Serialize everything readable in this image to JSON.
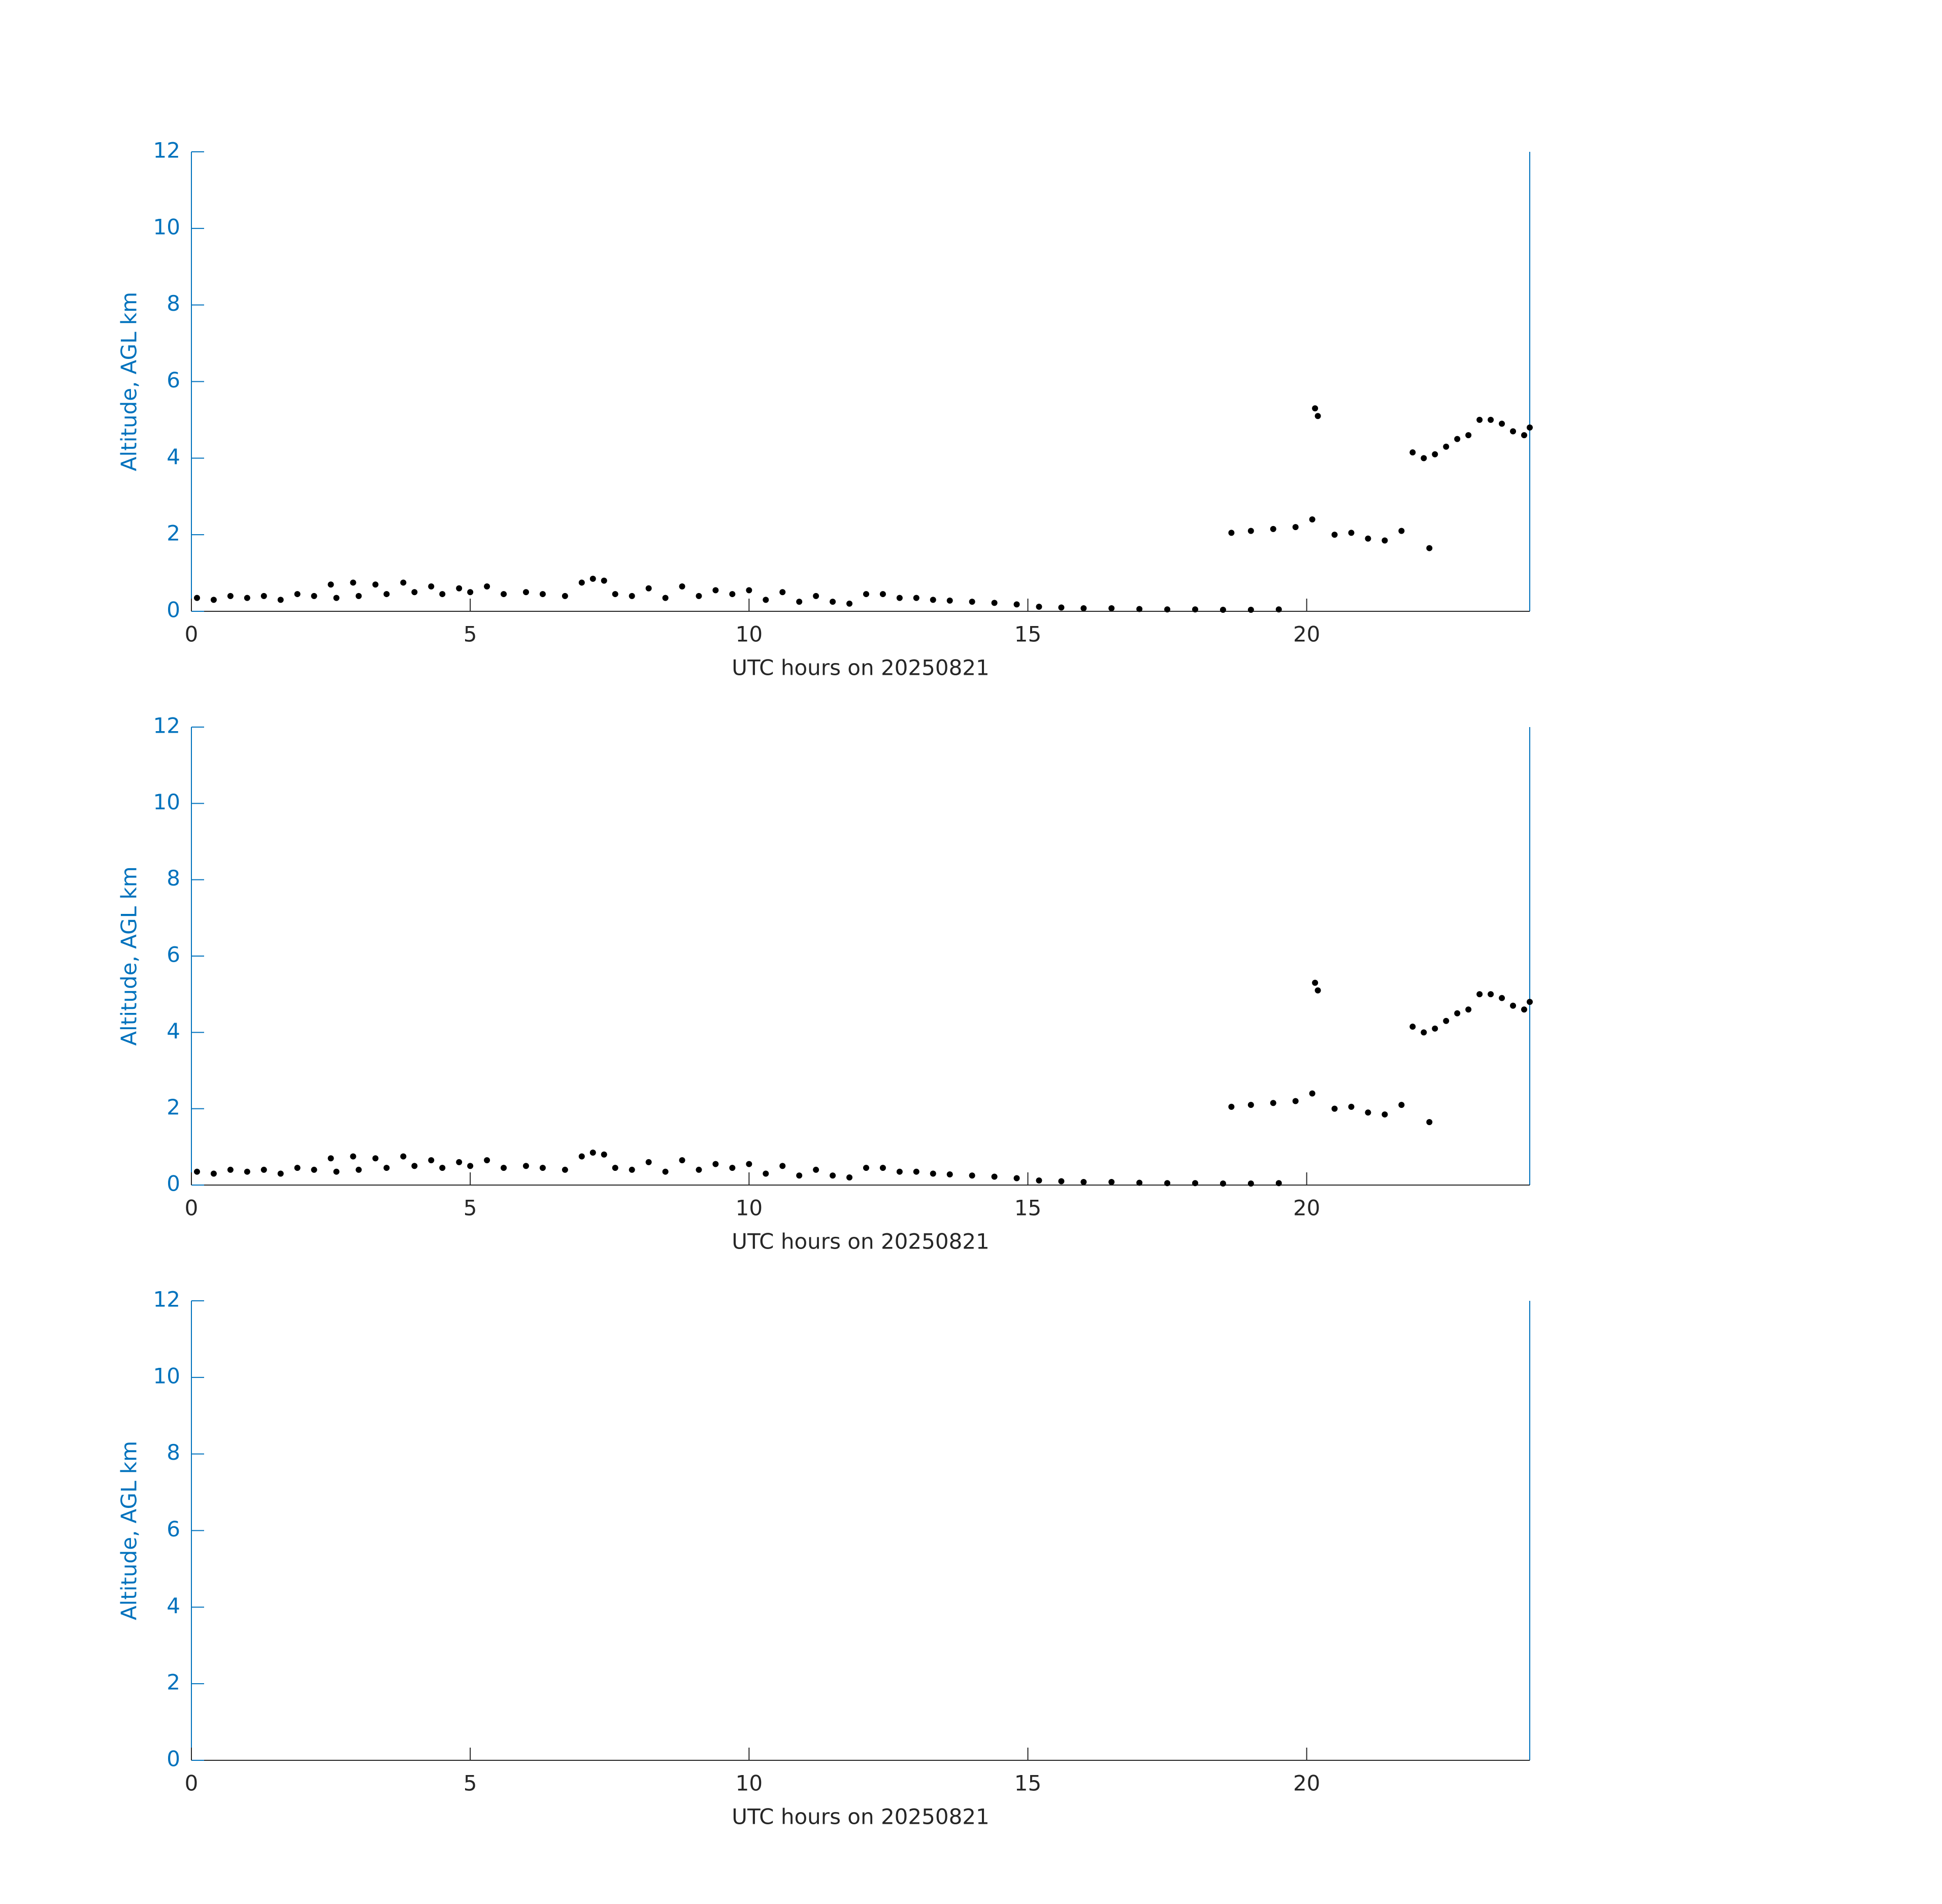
{
  "chart_data": [
    {
      "type": "scatter",
      "xlabel": "UTC hours on 20250821",
      "ylabel": "Altitude, AGL km",
      "xlim": [
        0,
        24
      ],
      "ylim": [
        0,
        12
      ],
      "xticks": [
        0,
        5,
        10,
        15,
        20
      ],
      "yticks": [
        0,
        2,
        4,
        6,
        8,
        10,
        12
      ],
      "y_axis_color": "#0072bd",
      "x_axis_color": "#262626",
      "color": "#000000",
      "x": [
        0.1,
        0.4,
        0.7,
        1.0,
        1.3,
        1.6,
        1.9,
        2.2,
        2.5,
        2.6,
        2.9,
        3.0,
        3.3,
        3.5,
        3.8,
        4.0,
        4.3,
        4.5,
        4.8,
        5.0,
        5.3,
        5.6,
        6.0,
        6.3,
        6.7,
        7.0,
        7.2,
        7.4,
        7.6,
        7.9,
        8.2,
        8.5,
        8.8,
        9.1,
        9.4,
        9.7,
        10.0,
        10.3,
        10.6,
        10.9,
        11.2,
        11.5,
        11.8,
        12.1,
        12.4,
        12.7,
        13.0,
        13.3,
        13.6,
        14.0,
        14.4,
        14.8,
        15.2,
        15.6,
        16.0,
        16.5,
        17.0,
        17.5,
        18.0,
        18.5,
        19.0,
        19.5,
        18.65,
        19.0,
        19.4,
        19.8,
        20.1,
        20.15,
        20.2,
        20.5,
        20.8,
        21.1,
        21.4,
        21.7,
        22.2,
        21.9,
        22.1,
        22.3,
        22.5,
        22.7,
        22.9,
        23.1,
        23.3,
        23.5,
        23.7,
        23.9,
        24.0
      ],
      "y": [
        0.35,
        0.3,
        0.4,
        0.35,
        0.4,
        0.3,
        0.45,
        0.4,
        0.7,
        0.35,
        0.75,
        0.4,
        0.7,
        0.45,
        0.75,
        0.5,
        0.65,
        0.45,
        0.6,
        0.5,
        0.65,
        0.45,
        0.5,
        0.45,
        0.4,
        0.75,
        0.85,
        0.8,
        0.45,
        0.4,
        0.6,
        0.35,
        0.65,
        0.4,
        0.55,
        0.45,
        0.55,
        0.3,
        0.5,
        0.25,
        0.4,
        0.25,
        0.2,
        0.45,
        0.45,
        0.35,
        0.35,
        0.3,
        0.28,
        0.25,
        0.22,
        0.18,
        0.12,
        0.1,
        0.08,
        0.08,
        0.06,
        0.05,
        0.05,
        0.04,
        0.04,
        0.05,
        2.05,
        2.1,
        2.15,
        2.2,
        2.4,
        5.3,
        5.1,
        2.0,
        2.05,
        1.9,
        1.85,
        2.1,
        1.65,
        4.15,
        4.0,
        4.1,
        4.3,
        4.5,
        4.6,
        5.0,
        5.0,
        4.9,
        4.7,
        4.6,
        4.8
      ]
    },
    {
      "type": "scatter",
      "xlabel": "UTC hours on 20250821",
      "ylabel": "Altitude, AGL km",
      "xlim": [
        0,
        24
      ],
      "ylim": [
        0,
        12
      ],
      "xticks": [
        0,
        5,
        10,
        15,
        20
      ],
      "yticks": [
        0,
        2,
        4,
        6,
        8,
        10,
        12
      ],
      "y_axis_color": "#0072bd",
      "x_axis_color": "#262626",
      "color": "#000000",
      "x": [
        0.1,
        0.4,
        0.7,
        1.0,
        1.3,
        1.6,
        1.9,
        2.2,
        2.5,
        2.6,
        2.9,
        3.0,
        3.3,
        3.5,
        3.8,
        4.0,
        4.3,
        4.5,
        4.8,
        5.0,
        5.3,
        5.6,
        6.0,
        6.3,
        6.7,
        7.0,
        7.2,
        7.4,
        7.6,
        7.9,
        8.2,
        8.5,
        8.8,
        9.1,
        9.4,
        9.7,
        10.0,
        10.3,
        10.6,
        10.9,
        11.2,
        11.5,
        11.8,
        12.1,
        12.4,
        12.7,
        13.0,
        13.3,
        13.6,
        14.0,
        14.4,
        14.8,
        15.2,
        15.6,
        16.0,
        16.5,
        17.0,
        17.5,
        18.0,
        18.5,
        19.0,
        19.5,
        18.65,
        19.0,
        19.4,
        19.8,
        20.1,
        20.15,
        20.2,
        20.5,
        20.8,
        21.1,
        21.4,
        21.7,
        22.2,
        21.9,
        22.1,
        22.3,
        22.5,
        22.7,
        22.9,
        23.1,
        23.3,
        23.5,
        23.7,
        23.9,
        24.0
      ],
      "y": [
        0.35,
        0.3,
        0.4,
        0.35,
        0.4,
        0.3,
        0.45,
        0.4,
        0.7,
        0.35,
        0.75,
        0.4,
        0.7,
        0.45,
        0.75,
        0.5,
        0.65,
        0.45,
        0.6,
        0.5,
        0.65,
        0.45,
        0.5,
        0.45,
        0.4,
        0.75,
        0.85,
        0.8,
        0.45,
        0.4,
        0.6,
        0.35,
        0.65,
        0.4,
        0.55,
        0.45,
        0.55,
        0.3,
        0.5,
        0.25,
        0.4,
        0.25,
        0.2,
        0.45,
        0.45,
        0.35,
        0.35,
        0.3,
        0.28,
        0.25,
        0.22,
        0.18,
        0.12,
        0.1,
        0.08,
        0.08,
        0.06,
        0.05,
        0.05,
        0.04,
        0.04,
        0.05,
        2.05,
        2.1,
        2.15,
        2.2,
        2.4,
        5.3,
        5.1,
        2.0,
        2.05,
        1.9,
        1.85,
        2.1,
        1.65,
        4.15,
        4.0,
        4.1,
        4.3,
        4.5,
        4.6,
        5.0,
        5.0,
        4.9,
        4.7,
        4.6,
        4.8
      ]
    },
    {
      "type": "scatter",
      "xlabel": "UTC hours on 20250821",
      "ylabel": "Altitude, AGL km",
      "xlim": [
        0,
        24
      ],
      "ylim": [
        0,
        12
      ],
      "xticks": [
        0,
        5,
        10,
        15,
        20
      ],
      "yticks": [
        0,
        2,
        4,
        6,
        8,
        10,
        12
      ],
      "y_axis_color": "#0072bd",
      "x_axis_color": "#262626",
      "color": "#000000",
      "x": [],
      "y": []
    }
  ]
}
